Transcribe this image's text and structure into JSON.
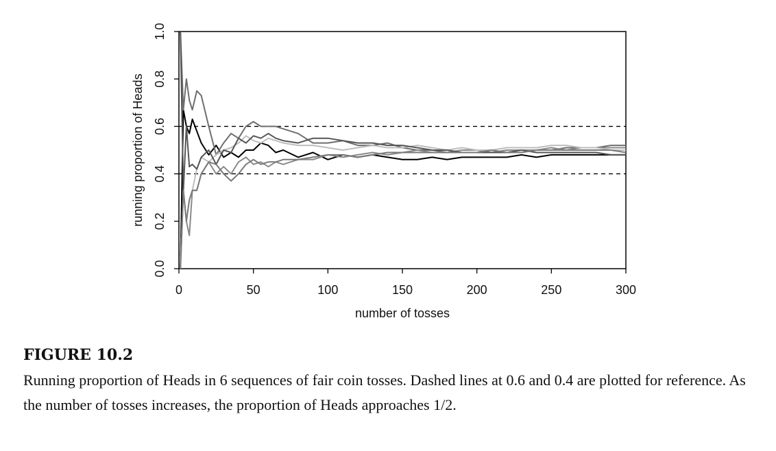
{
  "chart_data": {
    "type": "line",
    "title": "",
    "xlabel": "number of tosses",
    "ylabel": "running proportion of Heads",
    "xlim": [
      0,
      300
    ],
    "ylim": [
      0.0,
      1.0
    ],
    "xticks": [
      0,
      50,
      100,
      150,
      200,
      250,
      300
    ],
    "xtick_labels": [
      "0",
      "50",
      "100",
      "150",
      "200",
      "250",
      "300"
    ],
    "yticks": [
      0.0,
      0.2,
      0.4,
      0.6,
      0.8,
      1.0
    ],
    "ytick_labels": [
      "0.0",
      "0.2",
      "0.4",
      "0.6",
      "0.8",
      "1.0"
    ],
    "grid": false,
    "reference_lines": [
      0.6,
      0.4
    ],
    "series": [
      {
        "color": "#000000",
        "x": [
          1,
          3,
          5,
          7,
          9,
          12,
          15,
          20,
          25,
          30,
          35,
          40,
          45,
          50,
          55,
          60,
          65,
          70,
          80,
          90,
          100,
          110,
          120,
          130,
          140,
          150,
          160,
          170,
          180,
          190,
          200,
          210,
          220,
          230,
          240,
          250,
          260,
          270,
          280,
          290,
          300
        ],
        "y": [
          0.0,
          0.67,
          0.6,
          0.57,
          0.63,
          0.58,
          0.53,
          0.48,
          0.52,
          0.47,
          0.49,
          0.47,
          0.5,
          0.5,
          0.53,
          0.52,
          0.49,
          0.5,
          0.47,
          0.49,
          0.46,
          0.48,
          0.47,
          0.48,
          0.47,
          0.46,
          0.46,
          0.47,
          0.46,
          0.47,
          0.47,
          0.47,
          0.47,
          0.48,
          0.47,
          0.48,
          0.48,
          0.48,
          0.48,
          0.48,
          0.48
        ]
      },
      {
        "color": "#6e6e6e",
        "x": [
          1,
          3,
          5,
          7,
          9,
          12,
          15,
          20,
          25,
          30,
          35,
          40,
          45,
          50,
          55,
          60,
          65,
          70,
          80,
          90,
          100,
          110,
          120,
          130,
          140,
          150,
          160,
          170,
          180,
          190,
          200,
          210,
          220,
          230,
          240,
          250,
          260,
          270,
          280,
          290,
          300
        ],
        "y": [
          1.0,
          0.67,
          0.8,
          0.71,
          0.67,
          0.75,
          0.73,
          0.6,
          0.48,
          0.53,
          0.57,
          0.55,
          0.6,
          0.62,
          0.6,
          0.6,
          0.6,
          0.59,
          0.57,
          0.53,
          0.53,
          0.54,
          0.52,
          0.52,
          0.53,
          0.51,
          0.5,
          0.5,
          0.49,
          0.49,
          0.49,
          0.49,
          0.5,
          0.5,
          0.5,
          0.5,
          0.51,
          0.51,
          0.51,
          0.52,
          0.52
        ]
      },
      {
        "color": "#8a8a8a",
        "x": [
          1,
          3,
          5,
          7,
          9,
          12,
          15,
          20,
          25,
          30,
          35,
          40,
          45,
          50,
          55,
          60,
          65,
          70,
          80,
          90,
          100,
          110,
          120,
          130,
          140,
          150,
          160,
          170,
          180,
          190,
          200,
          210,
          220,
          230,
          240,
          250,
          260,
          270,
          280,
          290,
          300
        ],
        "y": [
          0.0,
          0.33,
          0.2,
          0.14,
          0.33,
          0.33,
          0.4,
          0.45,
          0.4,
          0.43,
          0.4,
          0.45,
          0.47,
          0.44,
          0.45,
          0.43,
          0.45,
          0.44,
          0.46,
          0.46,
          0.48,
          0.47,
          0.48,
          0.49,
          0.48,
          0.49,
          0.5,
          0.49,
          0.49,
          0.5,
          0.5,
          0.49,
          0.5,
          0.5,
          0.5,
          0.51,
          0.5,
          0.51,
          0.51,
          0.51,
          0.51
        ]
      },
      {
        "color": "#bdbdbd",
        "x": [
          1,
          3,
          5,
          7,
          9,
          12,
          15,
          20,
          25,
          30,
          35,
          40,
          45,
          50,
          55,
          60,
          65,
          70,
          80,
          90,
          100,
          110,
          120,
          130,
          140,
          150,
          160,
          170,
          180,
          190,
          200,
          210,
          220,
          230,
          240,
          250,
          260,
          270,
          280,
          290,
          300
        ],
        "y": [
          0.0,
          0.33,
          0.2,
          0.29,
          0.33,
          0.42,
          0.47,
          0.45,
          0.48,
          0.5,
          0.51,
          0.53,
          0.56,
          0.54,
          0.53,
          0.55,
          0.54,
          0.53,
          0.52,
          0.52,
          0.51,
          0.5,
          0.51,
          0.52,
          0.51,
          0.51,
          0.52,
          0.51,
          0.5,
          0.51,
          0.5,
          0.5,
          0.51,
          0.51,
          0.51,
          0.52,
          0.52,
          0.51,
          0.51,
          0.5,
          0.5
        ]
      },
      {
        "color": "#555555",
        "x": [
          1,
          3,
          5,
          7,
          9,
          12,
          15,
          20,
          25,
          30,
          35,
          40,
          45,
          50,
          55,
          60,
          65,
          70,
          80,
          90,
          100,
          110,
          120,
          130,
          140,
          150,
          160,
          170,
          180,
          190,
          200,
          210,
          220,
          230,
          240,
          250,
          260,
          270,
          280,
          290,
          300
        ],
        "y": [
          1.0,
          0.33,
          0.6,
          0.43,
          0.44,
          0.42,
          0.47,
          0.5,
          0.44,
          0.5,
          0.49,
          0.55,
          0.53,
          0.56,
          0.55,
          0.57,
          0.55,
          0.54,
          0.53,
          0.55,
          0.55,
          0.54,
          0.53,
          0.53,
          0.52,
          0.52,
          0.51,
          0.5,
          0.5,
          0.49,
          0.49,
          0.49,
          0.49,
          0.5,
          0.49,
          0.49,
          0.49,
          0.49,
          0.49,
          0.48,
          0.48
        ]
      },
      {
        "color": "#7a7a7a",
        "x": [
          1,
          3,
          5,
          7,
          9,
          12,
          15,
          20,
          25,
          30,
          35,
          40,
          45,
          50,
          55,
          60,
          65,
          70,
          80,
          90,
          100,
          110,
          120,
          130,
          140,
          150,
          160,
          170,
          180,
          190,
          200,
          210,
          220,
          230,
          240,
          250,
          260,
          270,
          280,
          290,
          300
        ],
        "y": [
          0.0,
          0.33,
          0.2,
          0.29,
          0.33,
          0.33,
          0.4,
          0.45,
          0.44,
          0.4,
          0.37,
          0.4,
          0.44,
          0.46,
          0.44,
          0.45,
          0.45,
          0.46,
          0.46,
          0.47,
          0.48,
          0.48,
          0.47,
          0.48,
          0.49,
          0.49,
          0.49,
          0.49,
          0.49,
          0.49,
          0.49,
          0.5,
          0.49,
          0.49,
          0.5,
          0.5,
          0.5,
          0.5,
          0.5,
          0.5,
          0.49
        ]
      }
    ]
  },
  "caption": {
    "label": "FIGURE 10.2",
    "text": "Running proportion of Heads in 6 sequences of fair coin tosses. Dashed lines at 0.6 and 0.4 are plotted for reference. As the number of tosses increases, the proportion of Heads approaches 1/2."
  }
}
